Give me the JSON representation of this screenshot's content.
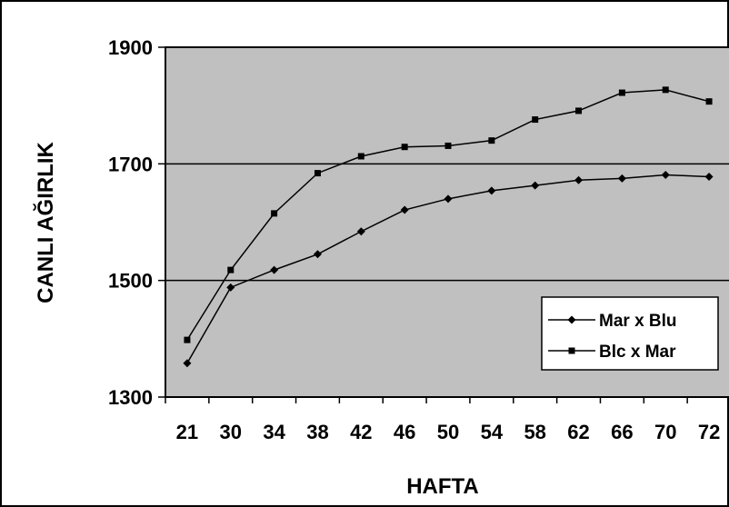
{
  "chart_data": {
    "type": "line",
    "categories": [
      "21",
      "30",
      "34",
      "38",
      "42",
      "46",
      "50",
      "54",
      "58",
      "62",
      "66",
      "70",
      "72"
    ],
    "series": [
      {
        "name": "Mar x Blu",
        "marker": "diamond",
        "values": [
          1358,
          1488,
          1518,
          1545,
          1584,
          1621,
          1640,
          1654,
          1663,
          1672,
          1675,
          1681,
          1678
        ]
      },
      {
        "name": "Blc x Mar",
        "marker": "square",
        "values": [
          1398,
          1518,
          1615,
          1684,
          1713,
          1729,
          1731,
          1740,
          1776,
          1791,
          1822,
          1827,
          1807
        ]
      }
    ],
    "xlabel": "HAFTA",
    "ylabel": "CANLI AĞIRLIK",
    "ylim": [
      1300,
      1900
    ],
    "yticks": [
      1300,
      1500,
      1700,
      1900
    ],
    "grid": true,
    "legend_position": "bottom-right",
    "colors": {
      "plot_background": "#c0c0c0",
      "line": "#000000",
      "page_background": "#ffffff"
    }
  }
}
